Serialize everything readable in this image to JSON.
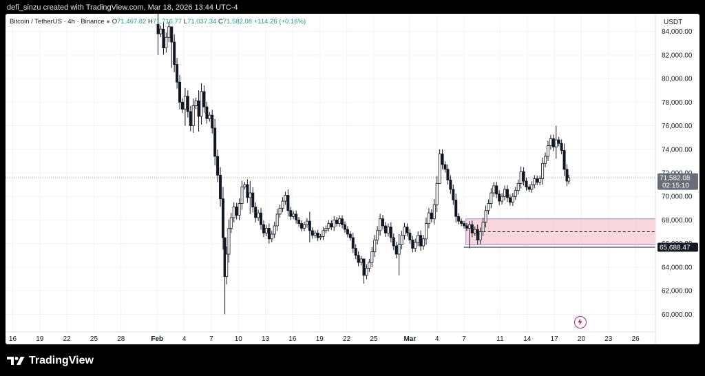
{
  "header": {
    "credit": "defi_sinzu created with TradingView.com, Mar 18, 2026 13:44 UTC-4"
  },
  "legend": {
    "symbol": "Bitcoin / TetherUS · 4h · Binance",
    "o_label": "O",
    "o_value": "71,467.82",
    "h_label": "H",
    "h_value": "71,716.77",
    "l_label": "L",
    "l_value": "71,037.34",
    "c_label": "C",
    "c_value": "71,582.08",
    "change": "+114.26 (+0.16%)"
  },
  "axis": {
    "currency": "USDT",
    "price_label": "71,582.08",
    "countdown": "02:15:10",
    "level_label": "65,688.47"
  },
  "footer": {
    "brand": "TradingView"
  },
  "colors": {
    "up": "#1f9e89",
    "candle": "#131722",
    "grid": "#f0f3fa",
    "zone_fill": "#f8c9d4",
    "zone_border": "#9b8ee0",
    "price_tag": "#6a6d78",
    "level_tag": "#131722"
  },
  "chart_data": {
    "type": "candlestick",
    "symbol": "Bitcoin / TetherUS",
    "interval": "4h",
    "exchange": "Binance",
    "ylim": [
      58500,
      85500
    ],
    "y_ticks": [
      60000,
      62000,
      64000,
      66000,
      68000,
      70000,
      72000,
      74000,
      76000,
      78000,
      80000,
      82000,
      84000
    ],
    "y_tick_labels": [
      "60,000.00",
      "62,000.00",
      "64,000.00",
      "66,000.00",
      "68,000.00",
      "70,000.00",
      "72,000.00",
      "74,000.00",
      "76,000.00",
      "78,000.00",
      "80,000.00",
      "82,000.00",
      "84,000.00"
    ],
    "x_tick_labels": [
      "16",
      "19",
      "22",
      "25",
      "28",
      "Feb",
      "4",
      "7",
      "10",
      "13",
      "16",
      "19",
      "22",
      "25",
      "Mar",
      "4",
      "7",
      "11",
      "14",
      "17",
      "20",
      "23",
      "26"
    ],
    "x_tick_days": [
      -16,
      -13,
      -10,
      -7,
      -4,
      0,
      3,
      6,
      9,
      12,
      15,
      18,
      21,
      24,
      28,
      31,
      34,
      38,
      41,
      44,
      47,
      50,
      53
    ],
    "x_range_days": [
      -16.8,
      55.2
    ],
    "last_price": 71582.08,
    "horizontal_level": 65688.47,
    "demand_zone": {
      "top": 68100,
      "bottom": 65900,
      "mid": 67000,
      "start_day": 34.2,
      "end_day": 55.2
    },
    "close_series": [
      [
        -0.2,
        84600
      ],
      [
        0.1,
        83800
      ],
      [
        0.4,
        84200
      ],
      [
        0.7,
        82600
      ],
      [
        1.0,
        83500
      ],
      [
        1.3,
        84400
      ],
      [
        1.6,
        83100
      ],
      [
        1.9,
        81200
      ],
      [
        2.2,
        79700
      ],
      [
        2.5,
        78000
      ],
      [
        2.8,
        77400
      ],
      [
        3.1,
        78500
      ],
      [
        3.4,
        77200
      ],
      [
        3.7,
        76000
      ],
      [
        4.0,
        77700
      ],
      [
        4.3,
        78100
      ],
      [
        4.6,
        76800
      ],
      [
        4.9,
        78900
      ],
      [
        5.2,
        77600
      ],
      [
        5.5,
        76600
      ],
      [
        5.8,
        76900
      ],
      [
        6.1,
        75800
      ],
      [
        6.4,
        73400
      ],
      [
        6.7,
        71800
      ],
      [
        7.0,
        69800
      ],
      [
        7.3,
        66500
      ],
      [
        7.5,
        63200
      ],
      [
        7.7,
        65100
      ],
      [
        7.95,
        67300
      ],
      [
        8.2,
        68200
      ],
      [
        8.5,
        69100
      ],
      [
        8.8,
        68400
      ],
      [
        9.1,
        69400
      ],
      [
        9.4,
        70800
      ],
      [
        9.7,
        71000
      ],
      [
        10.0,
        69900
      ],
      [
        10.3,
        70300
      ],
      [
        10.6,
        69100
      ],
      [
        10.9,
        68200
      ],
      [
        11.2,
        68600
      ],
      [
        11.5,
        67600
      ],
      [
        11.8,
        66900
      ],
      [
        12.1,
        67300
      ],
      [
        12.4,
        66400
      ],
      [
        12.7,
        66800
      ],
      [
        13.0,
        67500
      ],
      [
        13.3,
        68500
      ],
      [
        13.6,
        69000
      ],
      [
        13.9,
        69600
      ],
      [
        14.2,
        70100
      ],
      [
        14.5,
        68800
      ],
      [
        14.8,
        68300
      ],
      [
        15.1,
        68500
      ],
      [
        15.4,
        68000
      ],
      [
        15.7,
        67700
      ],
      [
        16.0,
        67300
      ],
      [
        16.3,
        67600
      ],
      [
        16.6,
        67900
      ],
      [
        16.9,
        67100
      ],
      [
        17.2,
        66700
      ],
      [
        17.5,
        66900
      ],
      [
        17.8,
        66500
      ],
      [
        18.1,
        66600
      ],
      [
        18.4,
        67100
      ],
      [
        18.7,
        67300
      ],
      [
        19.0,
        67700
      ],
      [
        19.3,
        67400
      ],
      [
        19.6,
        68000
      ],
      [
        19.9,
        67700
      ],
      [
        20.2,
        68100
      ],
      [
        20.5,
        67600
      ],
      [
        20.8,
        67200
      ],
      [
        21.1,
        66800
      ],
      [
        21.4,
        66500
      ],
      [
        21.7,
        65600
      ],
      [
        22.0,
        65000
      ],
      [
        22.3,
        64400
      ],
      [
        22.6,
        64700
      ],
      [
        22.9,
        63300
      ],
      [
        23.2,
        63900
      ],
      [
        23.5,
        64400
      ],
      [
        23.8,
        65300
      ],
      [
        24.1,
        66300
      ],
      [
        24.4,
        67100
      ],
      [
        24.7,
        68100
      ],
      [
        25.0,
        67500
      ],
      [
        25.3,
        66900
      ],
      [
        25.6,
        67400
      ],
      [
        25.9,
        66500
      ],
      [
        26.2,
        65800
      ],
      [
        26.5,
        65100
      ],
      [
        26.8,
        65900
      ],
      [
        27.1,
        66700
      ],
      [
        27.4,
        67400
      ],
      [
        27.7,
        66900
      ],
      [
        28.0,
        66300
      ],
      [
        28.3,
        65600
      ],
      [
        28.6,
        66100
      ],
      [
        28.9,
        66700
      ],
      [
        29.2,
        65800
      ],
      [
        29.5,
        66400
      ],
      [
        29.8,
        67700
      ],
      [
        30.1,
        68600
      ],
      [
        30.4,
        68100
      ],
      [
        30.7,
        69300
      ],
      [
        31.0,
        71100
      ],
      [
        31.3,
        73600
      ],
      [
        31.6,
        72700
      ],
      [
        31.9,
        72300
      ],
      [
        32.2,
        71400
      ],
      [
        32.5,
        70600
      ],
      [
        32.8,
        69700
      ],
      [
        33.1,
        68300
      ],
      [
        33.4,
        67900
      ],
      [
        33.7,
        67700
      ],
      [
        34.0,
        67500
      ],
      [
        34.3,
        67300
      ],
      [
        34.6,
        67600
      ],
      [
        34.9,
        66900
      ],
      [
        35.2,
        67200
      ],
      [
        35.5,
        66300
      ],
      [
        35.8,
        67000
      ],
      [
        36.1,
        67800
      ],
      [
        36.4,
        68800
      ],
      [
        36.7,
        69400
      ],
      [
        37.0,
        70300
      ],
      [
        37.3,
        70900
      ],
      [
        37.6,
        70200
      ],
      [
        37.9,
        69600
      ],
      [
        38.2,
        70000
      ],
      [
        38.5,
        70600
      ],
      [
        38.8,
        69900
      ],
      [
        39.1,
        69500
      ],
      [
        39.4,
        70000
      ],
      [
        39.7,
        70500
      ],
      [
        40.0,
        71100
      ],
      [
        40.3,
        72100
      ],
      [
        40.6,
        71300
      ],
      [
        40.9,
        70800
      ],
      [
        41.2,
        70600
      ],
      [
        41.5,
        71000
      ],
      [
        41.8,
        71500
      ],
      [
        42.1,
        71200
      ],
      [
        42.4,
        71500
      ],
      [
        42.7,
        72800
      ],
      [
        43.0,
        73400
      ],
      [
        43.3,
        74300
      ],
      [
        43.6,
        74900
      ],
      [
        43.9,
        74200
      ],
      [
        44.2,
        74800
      ],
      [
        44.5,
        74500
      ],
      [
        44.8,
        73900
      ],
      [
        45.1,
        72300
      ],
      [
        45.4,
        71300
      ],
      [
        45.6,
        71582
      ]
    ],
    "wick_extremes": [
      [
        0.1,
        86200,
        82000
      ],
      [
        1.6,
        84400,
        80900
      ],
      [
        3.1,
        79200,
        76000
      ],
      [
        4.6,
        79000,
        75500
      ],
      [
        7.5,
        64400,
        60000
      ],
      [
        10.3,
        71300,
        68500
      ],
      [
        16.9,
        68700,
        66100
      ],
      [
        22.9,
        64500,
        62600
      ],
      [
        26.8,
        66800,
        63300
      ],
      [
        31.3,
        74000,
        71600
      ],
      [
        34.6,
        67900,
        65600
      ],
      [
        44.2,
        76000,
        73200
      ]
    ]
  }
}
